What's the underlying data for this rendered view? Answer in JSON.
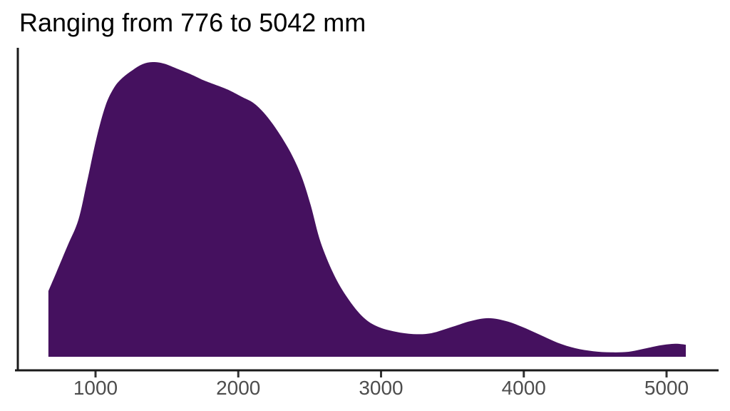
{
  "chart_data": {
    "type": "area",
    "subtype": "kernel-density",
    "title": "Ranging from 776 to 5042 mm",
    "xlabel": "",
    "ylabel": "",
    "unit": "mm",
    "range_min_mm": 776,
    "range_max_mm": 5042,
    "x_ticks": [
      1000,
      2000,
      3000,
      4000,
      5000
    ],
    "xlim": [
      670,
      5135
    ],
    "ylim": [
      0,
      1.09
    ],
    "grid": false,
    "legend": "none",
    "fill_color": "#45115f",
    "axis_color": "#1a1a1a",
    "tick_color": "#333333",
    "tick_label_color": "#4d4d4d",
    "title_color": "#000000",
    "points": [
      [
        670,
        0.223
      ],
      [
        730,
        0.291
      ],
      [
        805,
        0.378
      ],
      [
        880,
        0.465
      ],
      [
        940,
        0.593
      ],
      [
        1005,
        0.738
      ],
      [
        1070,
        0.852
      ],
      [
        1130,
        0.913
      ],
      [
        1190,
        0.947
      ],
      [
        1260,
        0.973
      ],
      [
        1330,
        0.993
      ],
      [
        1400,
        1.0
      ],
      [
        1479,
        0.995
      ],
      [
        1579,
        0.976
      ],
      [
        1679,
        0.956
      ],
      [
        1754,
        0.939
      ],
      [
        1829,
        0.925
      ],
      [
        1929,
        0.906
      ],
      [
        2029,
        0.881
      ],
      [
        2104,
        0.862
      ],
      [
        2179,
        0.828
      ],
      [
        2253,
        0.782
      ],
      [
        2328,
        0.726
      ],
      [
        2388,
        0.673
      ],
      [
        2448,
        0.605
      ],
      [
        2508,
        0.513
      ],
      [
        2578,
        0.387
      ],
      [
        2678,
        0.271
      ],
      [
        2778,
        0.191
      ],
      [
        2878,
        0.133
      ],
      [
        2978,
        0.102
      ],
      [
        3102,
        0.085
      ],
      [
        3227,
        0.077
      ],
      [
        3352,
        0.08
      ],
      [
        3502,
        0.102
      ],
      [
        3627,
        0.121
      ],
      [
        3752,
        0.131
      ],
      [
        3876,
        0.121
      ],
      [
        3986,
        0.102
      ],
      [
        4111,
        0.075
      ],
      [
        4236,
        0.048
      ],
      [
        4361,
        0.029
      ],
      [
        4486,
        0.019
      ],
      [
        4611,
        0.015
      ],
      [
        4735,
        0.017
      ],
      [
        4860,
        0.029
      ],
      [
        4960,
        0.039
      ],
      [
        5060,
        0.044
      ],
      [
        5135,
        0.041
      ]
    ]
  }
}
